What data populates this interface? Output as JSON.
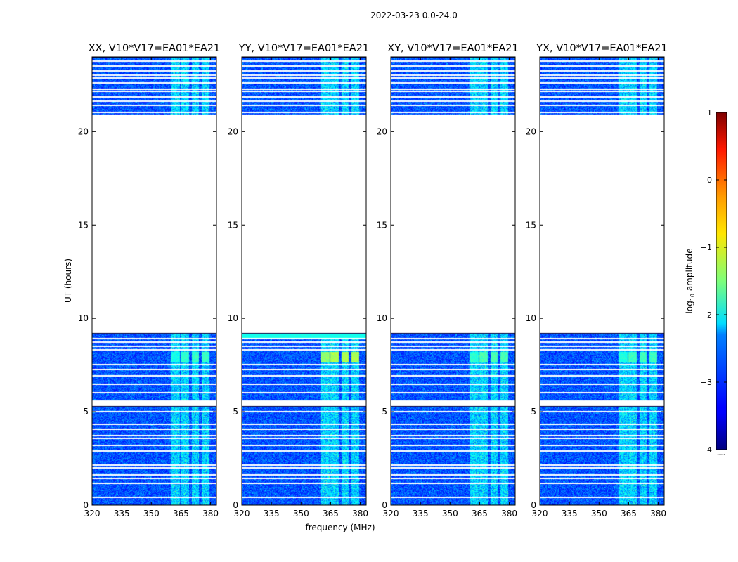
{
  "chart_data": {
    "type": "heatmap",
    "suptitle": "2022-03-23 0.0-24.0",
    "xlabel": "frequency (MHz)",
    "ylabel": "UT (hours)",
    "colorbar": {
      "label_main": "log",
      "label_sub": "10",
      "label_rest": " amplitude",
      "range": [
        -4,
        1
      ],
      "ticks": [
        1,
        0,
        -1,
        -2,
        -3,
        -4
      ],
      "tick_labels": [
        "1",
        "0",
        "−1",
        "−2",
        "−3",
        "−4"
      ],
      "colormap": "jet",
      "footnote": "......"
    },
    "xlim": [
      320,
      383
    ],
    "ylim": [
      0,
      24
    ],
    "xticks": [
      320,
      335,
      350,
      365,
      380
    ],
    "xtick_labels": [
      "320",
      "335",
      "350",
      "365",
      "380"
    ],
    "yticks": [
      0,
      5,
      10,
      15,
      20
    ],
    "ytick_labels": [
      "0",
      "5",
      "10",
      "15",
      "20"
    ],
    "data_intervals_hours": [
      [
        0,
        5.3
      ],
      [
        5.6,
        9.2
      ],
      [
        20.9,
        24
      ]
    ],
    "flagged_rows_hours": [
      0.45,
      1.2,
      1.45,
      1.65,
      2.05,
      2.2,
      2.95,
      3.25,
      3.6,
      3.75,
      4.1,
      4.35,
      5.05,
      6.05,
      6.5,
      6.95,
      7.3,
      7.55,
      8.35,
      8.55,
      8.75,
      8.95,
      21.05,
      21.45,
      21.65,
      21.9,
      22.2,
      22.3,
      22.65,
      22.9,
      23.05,
      23.3,
      23.55,
      23.8
    ],
    "rfi_bands_mhz": [
      [
        360,
        364.5
      ],
      [
        365,
        369
      ],
      [
        370.5,
        374
      ],
      [
        375.5,
        379.5
      ]
    ],
    "panels": [
      {
        "title": "XX, V10*V17=EA01*EA21",
        "rfi_peak_log10_amp": -1.8
      },
      {
        "title": "YY, V10*V17=EA01*EA21",
        "rfi_peak_log10_amp": -1.2
      },
      {
        "title": "XY, V10*V17=EA01*EA21",
        "rfi_peak_log10_amp": -1.7
      },
      {
        "title": "YX, V10*V17=EA01*EA21",
        "rfi_peak_log10_amp": -1.75
      }
    ]
  }
}
